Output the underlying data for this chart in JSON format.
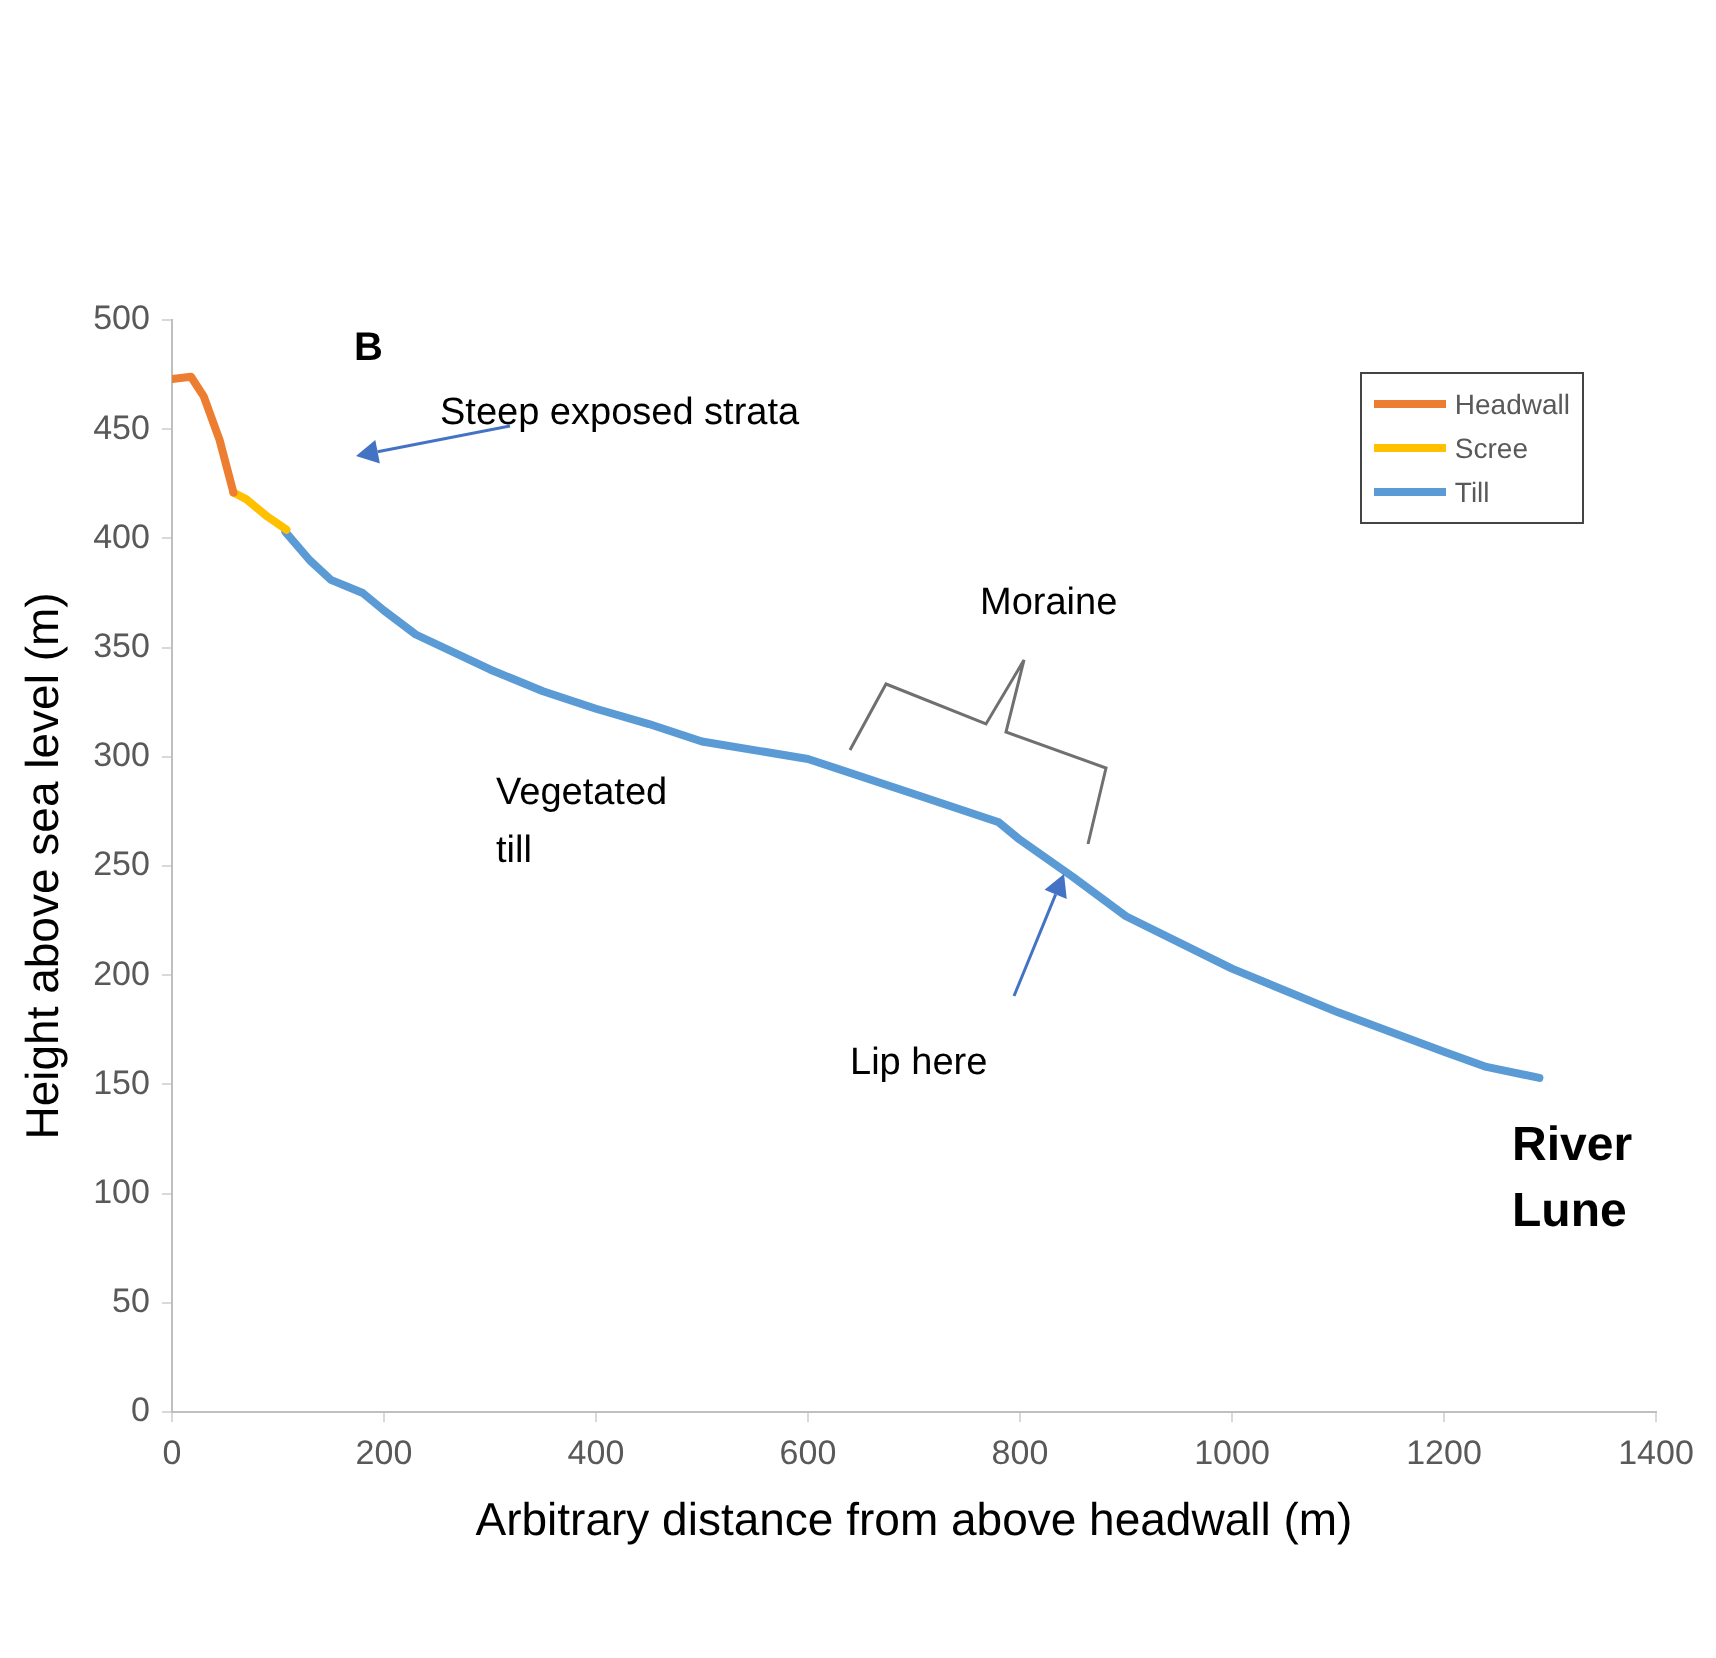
{
  "chart_data": {
    "type": "line",
    "xlabel": "Arbitrary distance from above headwall (m)",
    "ylabel": "Height above sea level (m)",
    "xlim": [
      0,
      1400
    ],
    "xticks": [
      0,
      200,
      400,
      600,
      800,
      1000,
      1200,
      1400
    ],
    "ylim": [
      0,
      500
    ],
    "yticks": [
      0,
      50,
      100,
      150,
      200,
      250,
      300,
      350,
      400,
      450,
      500
    ],
    "grid": false,
    "legend": "top right",
    "marker": "none",
    "line_style": "solid",
    "series": [
      {
        "name": "Headwall",
        "color": "#ed7d31",
        "x": [
          0,
          18,
          30,
          45,
          58
        ],
        "values": [
          473,
          474,
          465,
          445,
          421
        ]
      },
      {
        "name": "Scree",
        "color": "#ffc000",
        "x": [
          58,
          70,
          90,
          108
        ],
        "values": [
          421,
          418,
          410,
          404
        ]
      },
      {
        "name": "Till",
        "color": "#5b9bd5",
        "x": [
          107,
          130,
          150,
          180,
          200,
          230,
          300,
          350,
          400,
          450,
          500,
          600,
          700,
          780,
          800,
          850,
          900,
          1000,
          1100,
          1200,
          1240,
          1290
        ],
        "values": [
          403,
          390,
          381,
          375,
          367,
          356,
          340,
          330,
          322,
          315,
          307,
          299,
          283,
          270,
          262,
          245,
          227,
          203,
          183,
          165,
          158,
          153
        ]
      }
    ],
    "annotations": [
      "B",
      "Steep exposed strata",
      "Moraine",
      "Vegetated till",
      "Lip here",
      "River Lune"
    ]
  }
}
